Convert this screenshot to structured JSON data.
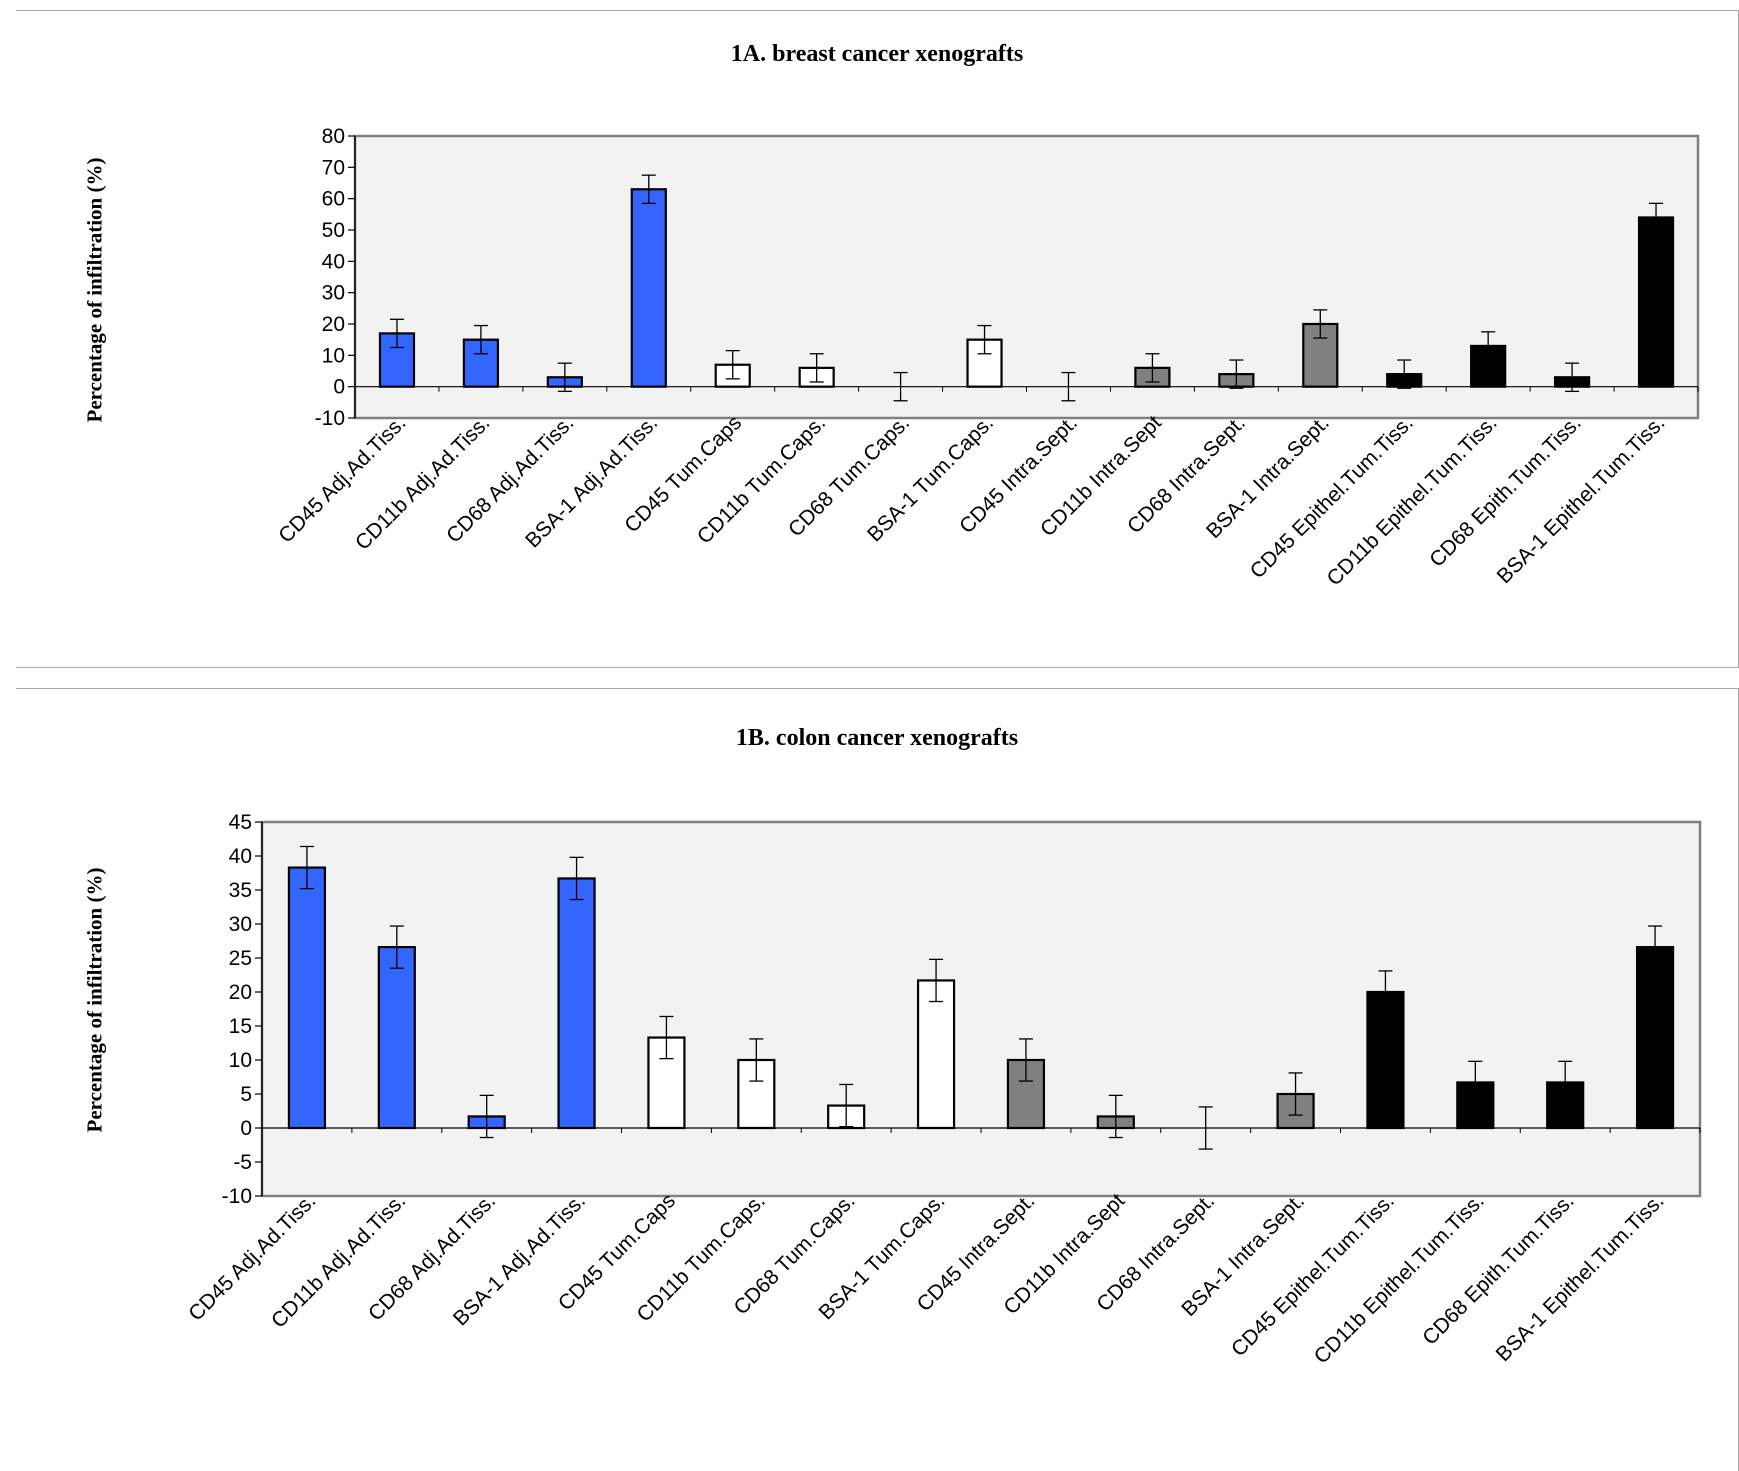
{
  "chart_data": [
    {
      "type": "bar",
      "title": "1A.  breast cancer xenografts",
      "xlabel": "",
      "ylabel": "Percentage of infiltration (%)",
      "ylim": [
        -10,
        80
      ],
      "yticks": [
        80,
        70,
        60,
        50,
        40,
        30,
        20,
        10,
        0,
        -10
      ],
      "grid": false,
      "legend": "none",
      "categories": [
        "CD45 Adj.Ad.Tiss.",
        "CD11b Adj.Ad.Tiss.",
        "CD68 Adj.Ad.Tiss.",
        "BSA-1 Adj.Ad.Tiss.",
        "CD45 Tum.Caps",
        "CD11b Tum.Caps.",
        "CD68 Tum.Caps.",
        "BSA-1 Tum.Caps.",
        "CD45 Intra.Sept.",
        "CD11b Intra.Sept",
        "CD68 Intra.Sept.",
        "BSA-1 Intra.Sept.",
        "CD45 Epithel.Tum.Tiss.",
        "CD11b Epithel.Tum.Tiss.",
        "CD68 Epith.Tum.Tiss.",
        "BSA-1 Epithel.Tum.Tiss."
      ],
      "values": [
        17,
        15,
        3,
        63,
        7,
        6,
        0,
        15,
        0,
        6,
        4,
        20,
        4,
        13,
        3,
        54
      ],
      "errors": [
        4.5,
        4.5,
        4.5,
        4.5,
        4.5,
        4.5,
        4.5,
        4.5,
        4.5,
        4.5,
        4.5,
        4.5,
        4.5,
        4.5,
        4.5,
        4.5
      ],
      "bar_colors": [
        "#3366ff",
        "#3366ff",
        "#3366ff",
        "#3366ff",
        "#ffffff",
        "#ffffff",
        "#ffffff",
        "#ffffff",
        "#808080",
        "#808080",
        "#808080",
        "#808080",
        "#000000",
        "#000000",
        "#000000",
        "#000000"
      ],
      "plot_background": "#f2f2f2"
    },
    {
      "type": "bar",
      "title": "1B.  colon cancer xenografts",
      "xlabel": "",
      "ylabel": "Percentage of infiltration (%)",
      "ylim": [
        -10,
        45
      ],
      "yticks": [
        45,
        40,
        35,
        30,
        25,
        20,
        15,
        10,
        5,
        0,
        -5,
        -10
      ],
      "grid": false,
      "legend": "none",
      "categories": [
        "CD45 Adj.Ad.Tiss.",
        "CD11b Adj.Ad.Tiss.",
        "CD68 Adj.Ad.Tiss.",
        "BSA-1 Adj.Ad.Tiss.",
        "CD45 Tum.Caps",
        "CD11b Tum.Caps.",
        "CD68 Tum.Caps.",
        "BSA-1 Tum.Caps.",
        "CD45 Intra.Sept.",
        "CD11b Intra.Sept",
        "CD68 Intra.Sept.",
        "BSA-1 Intra.Sept.",
        "CD45 Epithel.Tum.Tiss.",
        "CD11b Epithel.Tum.Tiss.",
        "CD68 Epith.Tum.Tiss.",
        "BSA-1 Epithel.Tum.Tiss."
      ],
      "values": [
        38.3,
        26.6,
        1.7,
        36.7,
        13.3,
        10,
        3.3,
        21.7,
        10,
        1.7,
        0,
        5,
        20,
        6.7,
        6.7,
        26.6
      ],
      "errors": [
        3.1,
        3.1,
        3.1,
        3.1,
        3.1,
        3.1,
        3.1,
        3.1,
        3.1,
        3.1,
        3.1,
        3.1,
        3.1,
        3.1,
        3.1,
        3.1
      ],
      "bar_colors": [
        "#3366ff",
        "#3366ff",
        "#3366ff",
        "#3366ff",
        "#ffffff",
        "#ffffff",
        "#ffffff",
        "#ffffff",
        "#808080",
        "#808080",
        "#808080",
        "#808080",
        "#000000",
        "#000000",
        "#000000",
        "#000000"
      ],
      "plot_background": "#f2f2f2"
    }
  ]
}
